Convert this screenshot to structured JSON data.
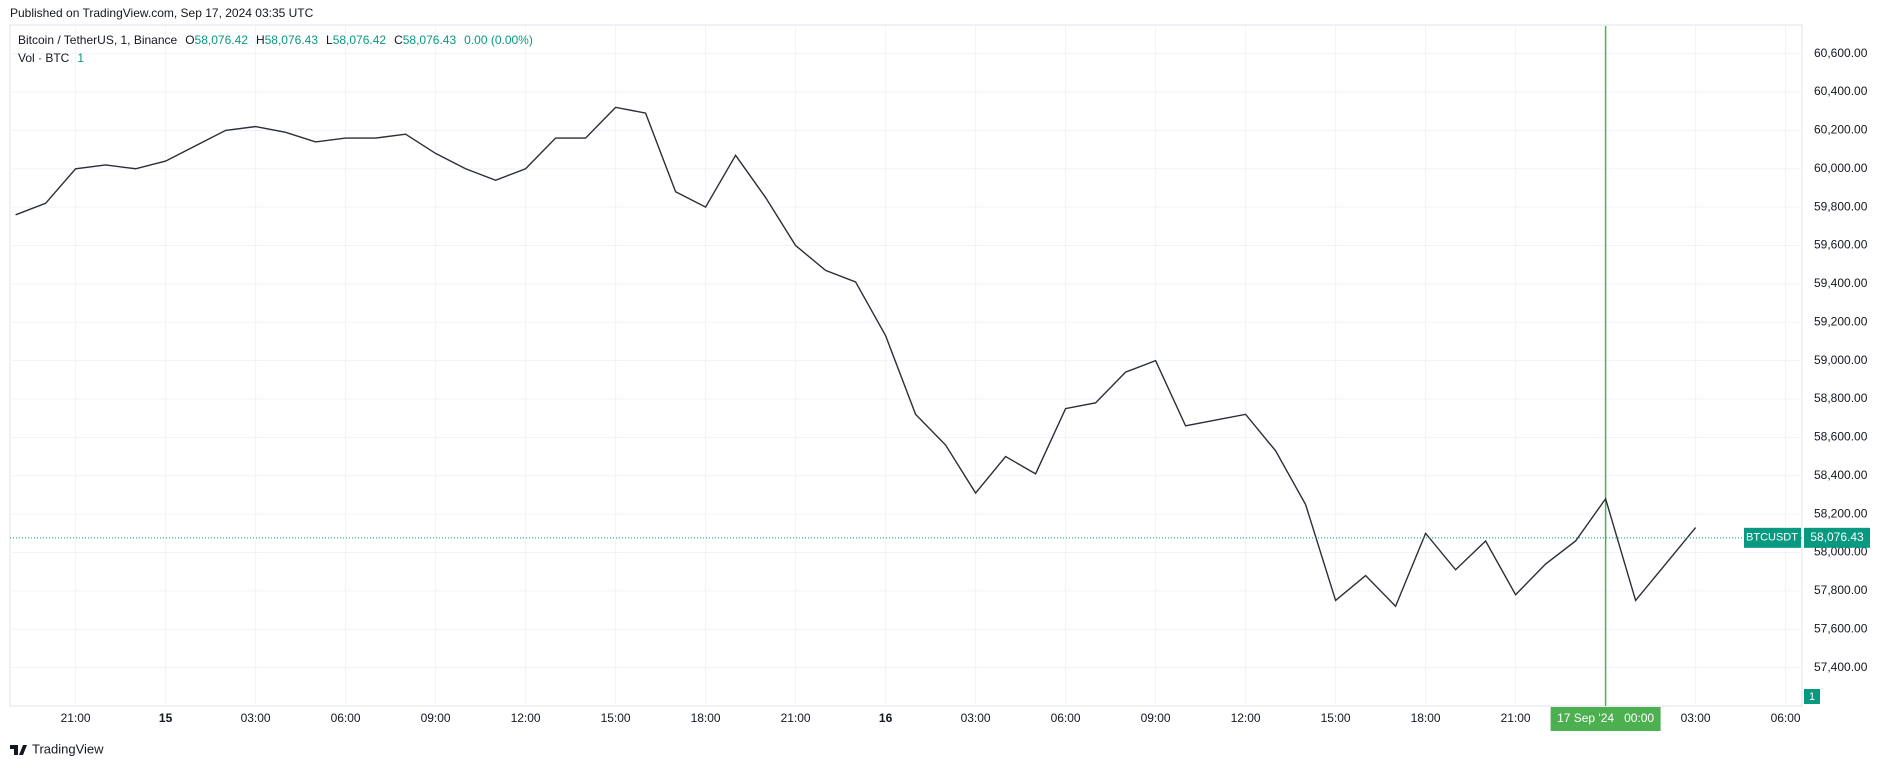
{
  "published": "Published on TradingView.com, Sep 17, 2024 03:35 UTC",
  "footer": "TradingView",
  "chart_data": {
    "type": "line",
    "symbol": "Bitcoin / TetherUS, 1, Binance",
    "ohlc": [
      {
        "name": "O",
        "label": "58,076.42"
      },
      {
        "name": "H",
        "label": "58,076.43"
      },
      {
        "name": "L",
        "label": "58,076.42"
      },
      {
        "name": "C",
        "label": "58,076.43"
      }
    ],
    "change": "0.00 (0.00%)",
    "volume": {
      "name": "Vol · BTC",
      "label": "1"
    },
    "symbol_tag": "BTCUSDT",
    "last_price": {
      "value": 58076.43,
      "label": "58,076.43"
    },
    "color": "#2a2e39",
    "price_color": "#089981",
    "crosshair_color": "#4caf50",
    "grid": true,
    "categories": [
      null,
      null,
      "21:00",
      null,
      null,
      "15",
      null,
      null,
      "03:00",
      null,
      null,
      "06:00",
      null,
      null,
      "09:00",
      null,
      null,
      "12:00",
      null,
      null,
      "15:00",
      null,
      null,
      "18:00",
      null,
      null,
      "21:00",
      null,
      null,
      "16",
      null,
      null,
      "03:00",
      null,
      null,
      "06:00",
      null,
      null,
      "09:00",
      null,
      null,
      "12:00",
      null,
      null,
      "15:00",
      null,
      null,
      "18:00",
      null,
      null,
      "21:00",
      null,
      null,
      "17 Sep '24   00:00",
      null,
      null,
      "03:00",
      null,
      null,
      "06:00"
    ],
    "series": [
      {
        "name": "BTCUSDT",
        "values": [
          59760,
          59820,
          60000,
          60020,
          60000,
          60040,
          60120,
          60200,
          60220,
          60190,
          60140,
          60160,
          60160,
          60180,
          60080,
          60000,
          59940,
          60000,
          60160,
          60160,
          60320,
          60290,
          59880,
          59800,
          60070,
          59850,
          59600,
          59470,
          59410,
          59130,
          58720,
          58560,
          58310,
          58500,
          58410,
          58750,
          58780,
          58940,
          59000,
          58660,
          58690,
          58720,
          58530,
          58250,
          57750,
          57880,
          57720,
          58100,
          57910,
          58060,
          57780,
          57940,
          58060,
          58280,
          57750,
          57940,
          58130,
          null,
          null,
          null
        ]
      }
    ],
    "ylim": [
      57200,
      60744
    ],
    "yticks": [
      {
        "value": 57400,
        "label": "57,400.00"
      },
      {
        "value": 57600,
        "label": "57,600.00"
      },
      {
        "value": 57800,
        "label": "57,800.00"
      },
      {
        "value": 58000,
        "label": "58,000.00"
      },
      {
        "value": 58200,
        "label": "58,200.00"
      },
      {
        "value": 58400,
        "label": "58,400.00"
      },
      {
        "value": 58600,
        "label": "58,600.00"
      },
      {
        "value": 58800,
        "label": "58,800.00"
      },
      {
        "value": 59000,
        "label": "59,000.00"
      },
      {
        "value": 59200,
        "label": "59,200.00"
      },
      {
        "value": 59400,
        "label": "59,400.00"
      },
      {
        "value": 59600,
        "label": "59,600.00"
      },
      {
        "value": 59800,
        "label": "59,800.00"
      },
      {
        "value": 60000,
        "label": "60,000.00"
      },
      {
        "value": 60200,
        "label": "60,200.00"
      },
      {
        "value": 60400,
        "label": "60,400.00"
      },
      {
        "value": 60600,
        "label": "60,600.00"
      }
    ]
  }
}
